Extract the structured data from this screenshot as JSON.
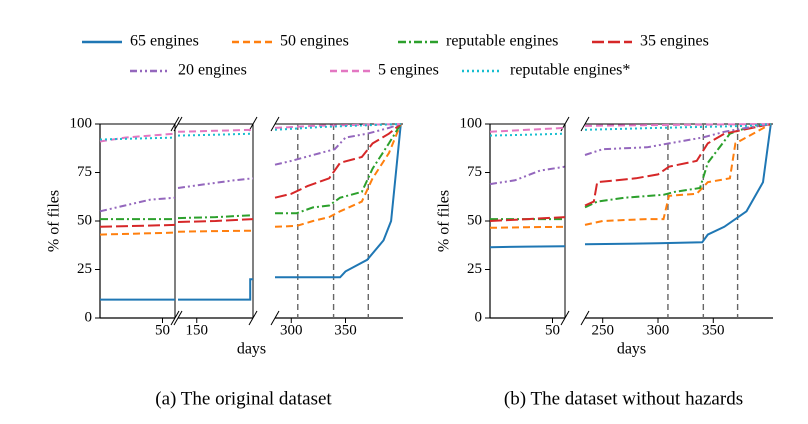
{
  "legend": [
    {
      "name": "65 engines",
      "color": "#1f77b4",
      "style": "solid"
    },
    {
      "name": "50 engines",
      "color": "#ff7f0e",
      "style": "dashed"
    },
    {
      "name": "reputable engines",
      "color": "#2ca02c",
      "style": "dashdot"
    },
    {
      "name": "35 engines",
      "color": "#d62728",
      "style": "longdash"
    },
    {
      "name": "20 engines",
      "color": "#9467bd",
      "style": "dashdotdot"
    },
    {
      "name": "5 engines",
      "color": "#e377c2",
      "style": "dashed"
    },
    {
      "name": "reputable engines*",
      "color": "#17becf",
      "style": "dotted"
    }
  ],
  "chart_data": [
    {
      "type": "line",
      "caption": "(a)  The original dataset",
      "xlabel": "days",
      "ylabel": "% of files",
      "ylim": [
        0,
        100
      ],
      "yticks": [
        0,
        25,
        50,
        75,
        100
      ],
      "panels": [
        {
          "xlim": [
            0,
            60
          ],
          "xticks": [
            50
          ],
          "vlines": [],
          "lines": [
            {
              "x": [
                0,
                60
              ],
              "values": [
                9.5,
                9.5
              ]
            },
            {
              "x": [
                0,
                30,
                60
              ],
              "values": [
                43,
                43.5,
                44
              ]
            },
            {
              "x": [
                0,
                30,
                60
              ],
              "values": [
                51,
                51,
                51
              ]
            },
            {
              "x": [
                0,
                30,
                60
              ],
              "values": [
                47,
                47.5,
                48
              ]
            },
            {
              "x": [
                0,
                20,
                40,
                60
              ],
              "values": [
                55,
                58,
                61,
                62
              ]
            },
            {
              "x": [
                0,
                20,
                40,
                60
              ],
              "values": [
                91,
                93,
                94,
                95
              ]
            },
            {
              "x": [
                0,
                30,
                60
              ],
              "values": [
                92,
                92.5,
                93
              ]
            }
          ]
        },
        {
          "xlim": [
            130,
            210
          ],
          "xticks": [
            150
          ],
          "vlines": [],
          "lines": [
            {
              "x": [
                130,
                207,
                207,
                210
              ],
              "values": [
                9.5,
                9.5,
                20,
                20
              ]
            },
            {
              "x": [
                130,
                170,
                210
              ],
              "values": [
                44.5,
                44.8,
                45
              ]
            },
            {
              "x": [
                130,
                170,
                210
              ],
              "values": [
                51.5,
                52,
                53
              ]
            },
            {
              "x": [
                130,
                170,
                210
              ],
              "values": [
                49.5,
                50,
                51
              ]
            },
            {
              "x": [
                130,
                160,
                190,
                210
              ],
              "values": [
                67,
                69,
                71,
                72
              ]
            },
            {
              "x": [
                130,
                170,
                210
              ],
              "values": [
                96,
                96.5,
                97
              ]
            },
            {
              "x": [
                130,
                170,
                210
              ],
              "values": [
                94,
                94.5,
                95
              ]
            }
          ]
        },
        {
          "xlim": [
            285,
            403
          ],
          "xticks": [
            300,
            350
          ],
          "vlines": [
            306,
            339,
            371
          ],
          "lines": [
            {
              "x": [
                285,
                345,
                350,
                370,
                385,
                392,
                401
              ],
              "values": [
                21,
                21,
                24,
                30,
                40,
                50,
                100
              ]
            },
            {
              "x": [
                285,
                305,
                320,
                335,
                345,
                365,
                375,
                390,
                401
              ],
              "values": [
                47,
                47.5,
                50,
                52,
                55,
                60,
                72,
                85,
                100
              ]
            },
            {
              "x": [
                285,
                305,
                320,
                335,
                345,
                365,
                375,
                390,
                401
              ],
              "values": [
                54,
                54,
                57,
                58,
                62,
                65,
                77,
                90,
                100
              ]
            },
            {
              "x": [
                285,
                300,
                315,
                335,
                345,
                365,
                375,
                390,
                401
              ],
              "values": [
                62,
                64,
                68,
                72,
                80,
                83,
                90,
                95,
                100
              ]
            },
            {
              "x": [
                285,
                300,
                320,
                340,
                350,
                370,
                390,
                401
              ],
              "values": [
                79,
                81,
                84,
                87,
                93,
                95,
                98,
                100
              ]
            },
            {
              "x": [
                285,
                320,
                401
              ],
              "values": [
                98,
                99,
                100
              ]
            },
            {
              "x": [
                285,
                330,
                401
              ],
              "values": [
                97,
                98.5,
                100
              ]
            }
          ]
        }
      ]
    },
    {
      "type": "line",
      "caption": "(b)  The dataset without hazards",
      "xlabel": "days",
      "ylabel": "% of files",
      "ylim": [
        0,
        100
      ],
      "yticks": [
        0,
        25,
        50,
        75,
        100
      ],
      "panels": [
        {
          "xlim": [
            0,
            60
          ],
          "xticks": [
            50
          ],
          "vlines": [],
          "lines": [
            {
              "x": [
                0,
                30,
                60
              ],
              "values": [
                36.5,
                36.8,
                37
              ]
            },
            {
              "x": [
                0,
                30,
                60
              ],
              "values": [
                46.5,
                46.8,
                47
              ]
            },
            {
              "x": [
                0,
                30,
                60
              ],
              "values": [
                51,
                51,
                51
              ]
            },
            {
              "x": [
                0,
                30,
                60
              ],
              "values": [
                50,
                51,
                52
              ]
            },
            {
              "x": [
                0,
                20,
                40,
                60
              ],
              "values": [
                69,
                71,
                76,
                78
              ]
            },
            {
              "x": [
                0,
                30,
                60
              ],
              "values": [
                96,
                97,
                98
              ]
            },
            {
              "x": [
                0,
                30,
                60
              ],
              "values": [
                94,
                94.5,
                95
              ]
            }
          ]
        },
        {
          "xlim": [
            234,
            404
          ],
          "xticks": [
            250,
            300,
            350
          ],
          "vlines": [
            309,
            341,
            372
          ],
          "lines": [
            {
              "x": [
                234,
                300,
                340,
                345,
                360,
                380,
                395,
                402
              ],
              "values": [
                38,
                38.5,
                39,
                43,
                47,
                55,
                70,
                100
              ]
            },
            {
              "x": [
                234,
                250,
                290,
                305,
                310,
                335,
                345,
                365,
                370,
                402
              ],
              "values": [
                48,
                50,
                51,
                51,
                63,
                64,
                70,
                72,
                90,
                100
              ]
            },
            {
              "x": [
                234,
                245,
                270,
                305,
                315,
                338,
                345,
                365,
                380,
                402
              ],
              "values": [
                57,
                60,
                62,
                63.5,
                65,
                67,
                80,
                95,
                98,
                100
              ]
            },
            {
              "x": [
                234,
                242,
                245,
                280,
                300,
                310,
                335,
                345,
                360,
                402
              ],
              "values": [
                58,
                60,
                70,
                72,
                74,
                78,
                81,
                90,
                95,
                100
              ]
            },
            {
              "x": [
                234,
                250,
                290,
                310,
                340,
                360,
                380,
                402
              ],
              "values": [
                84,
                87,
                88,
                90,
                93,
                96,
                98,
                100
              ]
            },
            {
              "x": [
                234,
                300,
                402
              ],
              "values": [
                99,
                99.5,
                100
              ]
            },
            {
              "x": [
                234,
                300,
                380,
                402
              ],
              "values": [
                97,
                98,
                99,
                100
              ]
            }
          ]
        }
      ]
    }
  ]
}
